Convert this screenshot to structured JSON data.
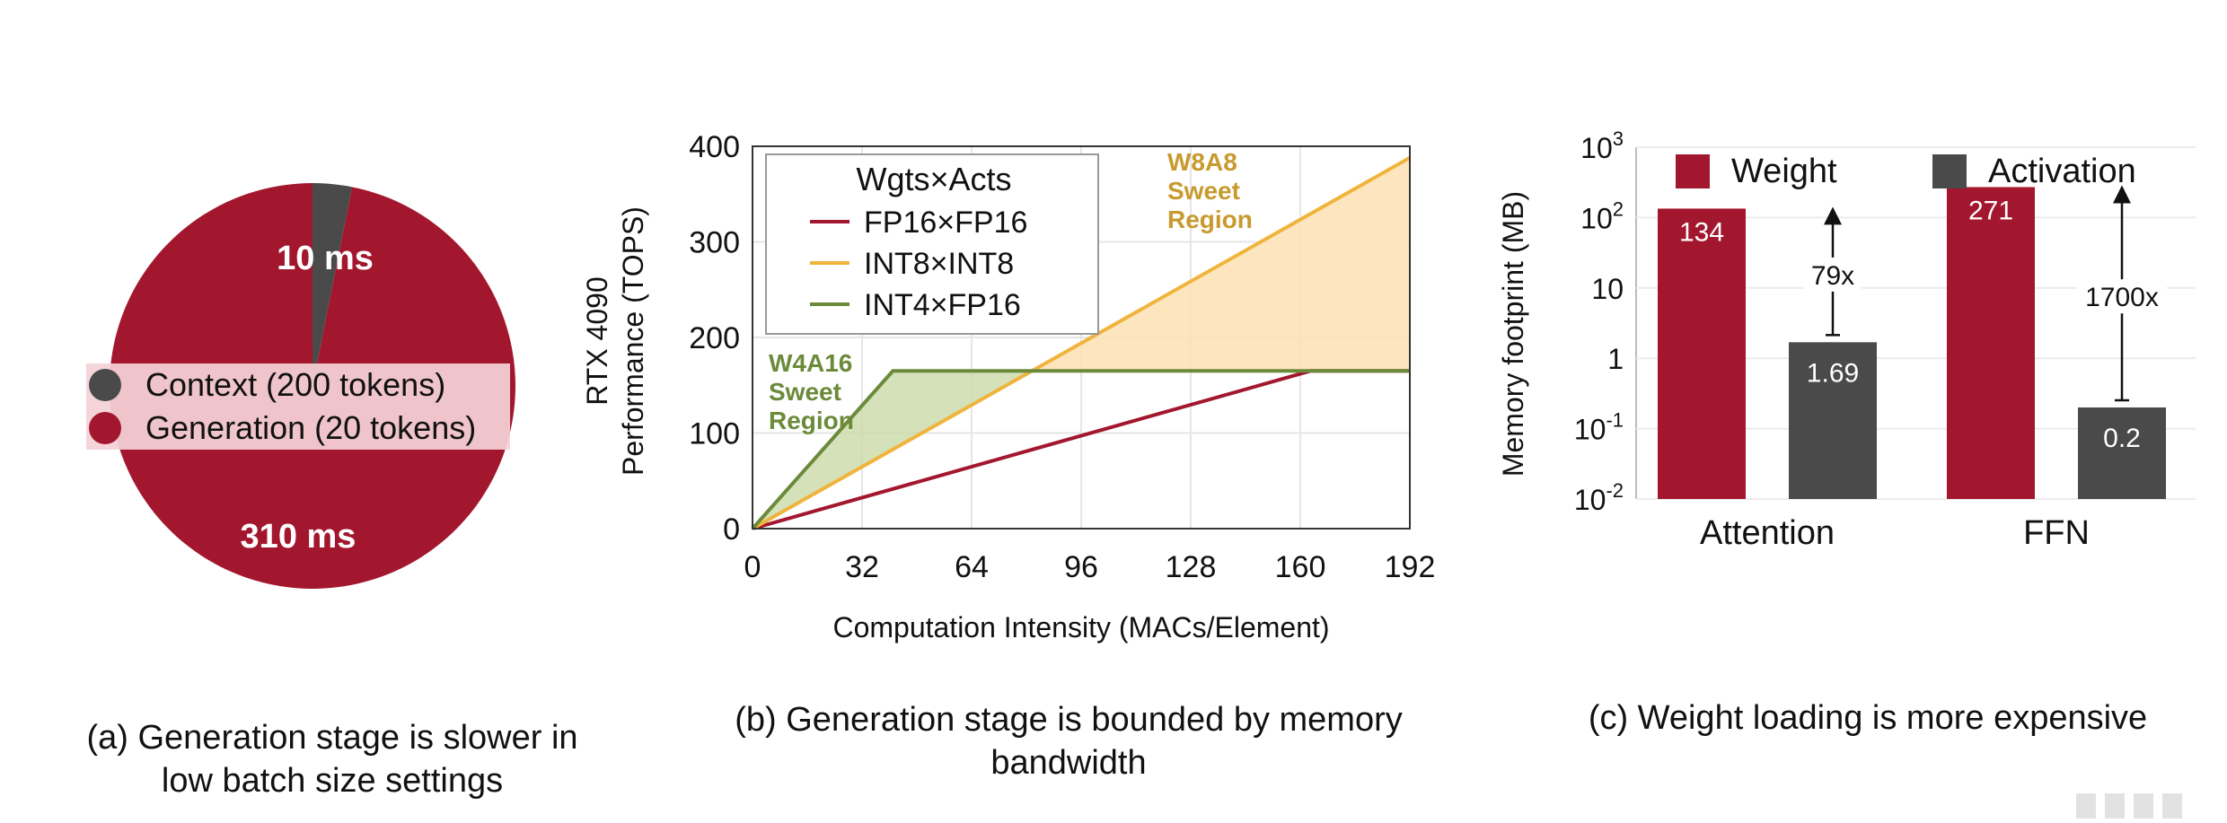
{
  "chart_data": [
    {
      "type": "pie",
      "slices": [
        {
          "name": "Context (200 tokens)",
          "value": 10,
          "label": "10 ms",
          "color": "#4a4a4a"
        },
        {
          "name": "Generation (20 tokens)",
          "value": 310,
          "label": "310 ms",
          "color": "#a3172e"
        }
      ],
      "legend_position": "center",
      "caption": [
        "(a) Generation stage is slower in",
        "low batch size settings"
      ]
    },
    {
      "type": "line",
      "xlabel": "Computation Intensity (MACs/Element)",
      "ylabel": [
        "RTX 4090",
        "Performance (TOPS)"
      ],
      "xlim": [
        0,
        192
      ],
      "ylim": [
        0,
        400
      ],
      "xticks": [
        0,
        32,
        64,
        96,
        128,
        160,
        192
      ],
      "yticks": [
        0,
        100,
        200,
        300,
        400
      ],
      "legend_title": "Wgts×Acts",
      "legend_position": "top-left",
      "series": [
        {
          "name": "FP16×FP16",
          "color": "#a3172e",
          "x": [
            0,
            163,
            192
          ],
          "y": [
            0,
            165,
            165
          ]
        },
        {
          "name": "INT8×INT8",
          "color": "#f0b43c",
          "x": [
            0,
            192
          ],
          "y": [
            0,
            388
          ]
        },
        {
          "name": "INT4×FP16",
          "color": "#6b8a3a",
          "x": [
            0,
            41,
            192
          ],
          "y": [
            0,
            165,
            165
          ]
        }
      ],
      "regions": [
        {
          "label": [
            "W4A16",
            "Sweet",
            "Region"
          ],
          "color": "#6b8a3a",
          "fill": "#c9d9a8"
        },
        {
          "label": [
            "W8A8",
            "Sweet",
            "Region"
          ],
          "color": "#c89a2e",
          "fill": "#fde2b4"
        }
      ],
      "caption": [
        "(b) Generation stage is bounded by memory",
        "bandwidth"
      ]
    },
    {
      "type": "bar",
      "ylabel": "Memory footprint (MB)",
      "yscale": "log",
      "ylim": [
        0.01,
        1000
      ],
      "yticks": [
        {
          "value": 0.01,
          "base": "10",
          "exp": "-2"
        },
        {
          "value": 0.1,
          "base": "10",
          "exp": "-1"
        },
        {
          "value": 1,
          "base": "1",
          "exp": ""
        },
        {
          "value": 10,
          "base": "10",
          "exp": ""
        },
        {
          "value": 100,
          "base": "10",
          "exp": "2"
        },
        {
          "value": 1000,
          "base": "10",
          "exp": "3"
        }
      ],
      "categories": [
        "Attention",
        "FFN"
      ],
      "series": [
        {
          "name": "Weight",
          "color": "#a3172e",
          "values": [
            134,
            271
          ],
          "labels": [
            "134",
            "271"
          ]
        },
        {
          "name": "Activation",
          "color": "#4a4a4a",
          "values": [
            1.69,
            0.2
          ],
          "labels": [
            "1.69",
            "0.2"
          ]
        }
      ],
      "ratios": [
        "79x",
        "1700x"
      ],
      "legend_position": "top",
      "caption": [
        "(c) Weight loading is more expensive"
      ]
    }
  ]
}
